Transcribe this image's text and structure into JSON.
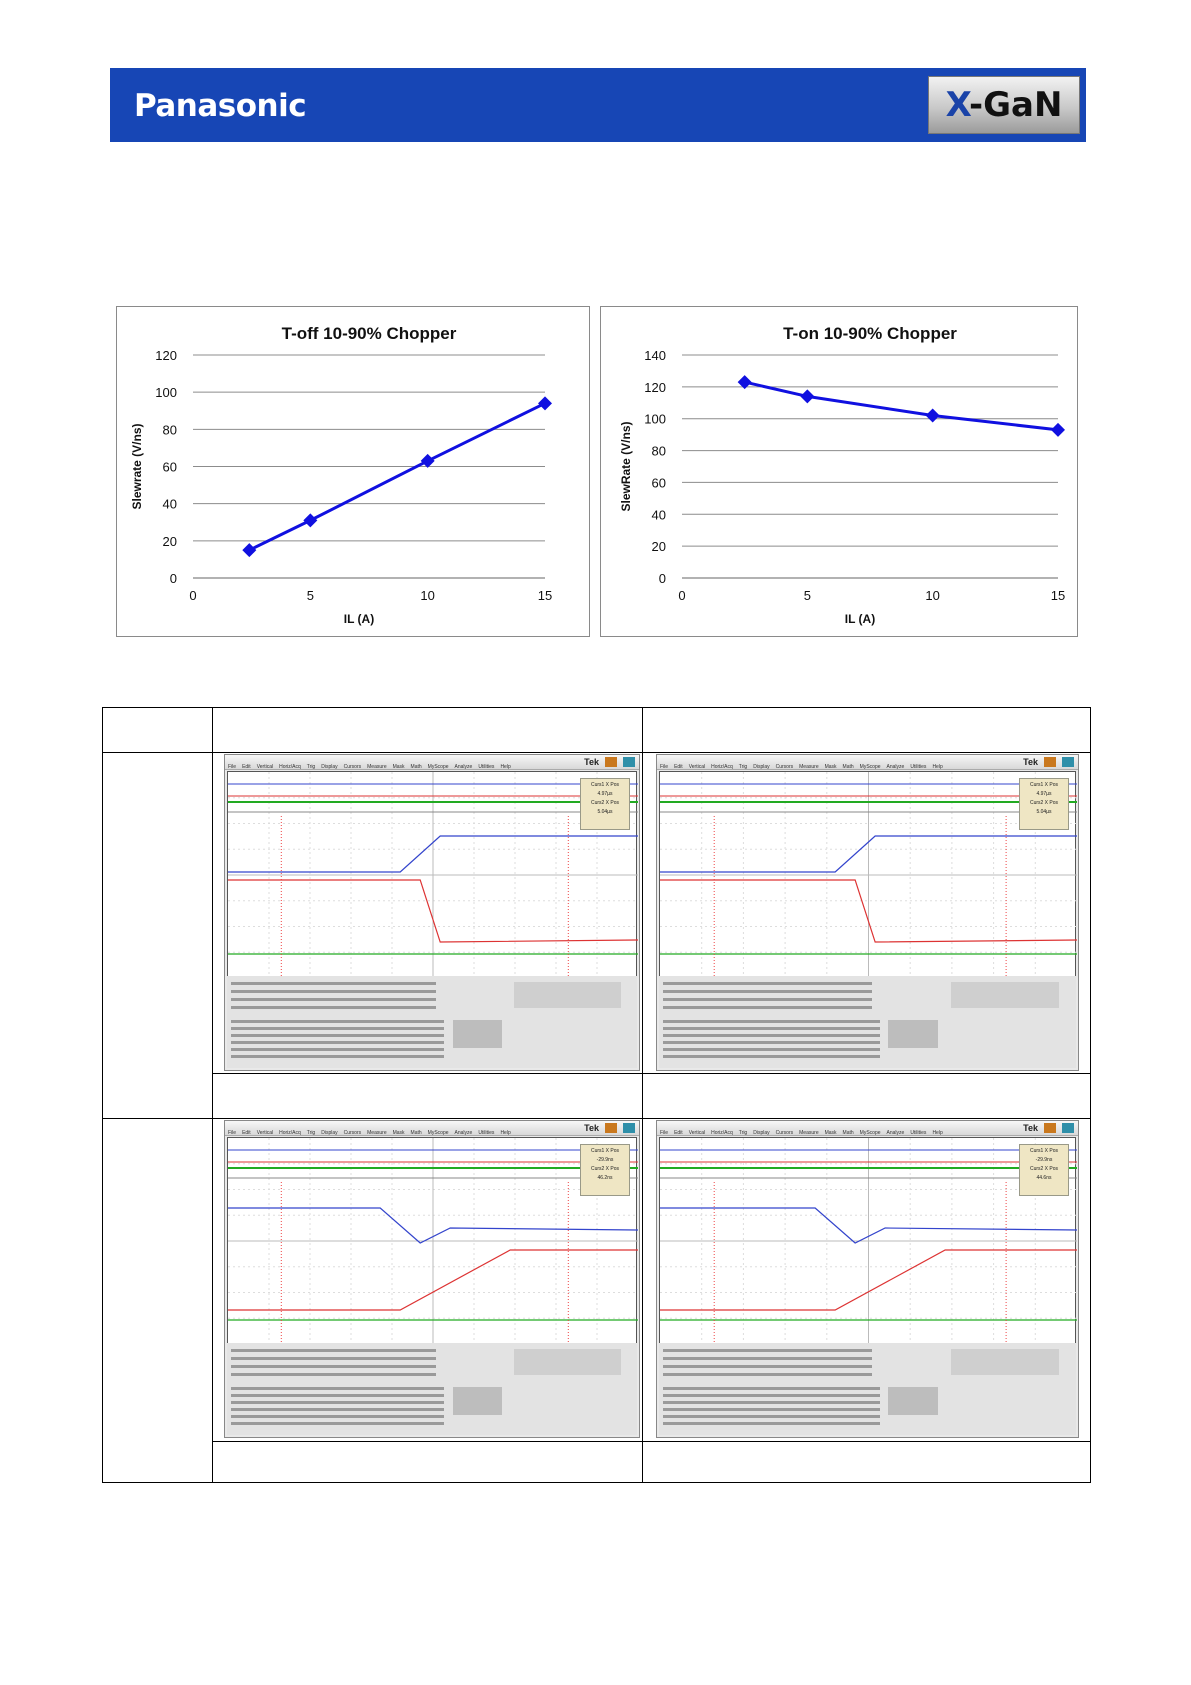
{
  "header": {
    "brand": "Panasonic",
    "logo_prefix": "X",
    "logo_suffix": "-GaN",
    "banner_color": "#1746b5"
  },
  "chart_data": [
    {
      "type": "line",
      "title": "T-off 10-90% Chopper",
      "xlabel": "IL (A)",
      "ylabel": "Slewrate (V/ns)",
      "xlim": [
        0,
        15
      ],
      "ylim": [
        0,
        120
      ],
      "xticks": [
        "0",
        "5",
        "10",
        "15"
      ],
      "yticks": [
        "0",
        "20",
        "40",
        "60",
        "80",
        "100",
        "120"
      ],
      "x": [
        2.4,
        5,
        10,
        15
      ],
      "y": [
        15,
        31,
        63,
        94
      ],
      "grid": true,
      "color": "#1010e0"
    },
    {
      "type": "line",
      "title": "T-on 10-90% Chopper",
      "xlabel": "IL (A)",
      "ylabel": "SlewRate (V/ns)",
      "xlim": [
        0,
        15
      ],
      "ylim": [
        0,
        140
      ],
      "xticks": [
        "0",
        "5",
        "10",
        "15"
      ],
      "yticks": [
        "0",
        "20",
        "40",
        "60",
        "80",
        "100",
        "120",
        "140"
      ],
      "x": [
        2.5,
        5,
        10,
        15
      ],
      "y": [
        123,
        114,
        102,
        93
      ],
      "grid": true,
      "color": "#1010e0"
    }
  ],
  "scopes": [
    {
      "cursor1_label": "Curs1 X Pos",
      "cursor1_value": "4.97µs",
      "cursor2_label": "Curs2 X Pos",
      "cursor2_value": "5.04µs",
      "tek": "Tek"
    },
    {
      "cursor1_label": "Curs1 X Pos",
      "cursor1_value": "4.97µs",
      "cursor2_label": "Curs2 X Pos",
      "cursor2_value": "5.04µs",
      "tek": "Tek"
    },
    {
      "cursor1_label": "Curs1 X Pos",
      "cursor1_value": "-29.9ns",
      "cursor2_label": "Curs2 X Pos",
      "cursor2_value": "46.2ns",
      "tek": "Tek"
    },
    {
      "cursor1_label": "Curs1 X Pos",
      "cursor1_value": "-29.9ns",
      "cursor2_label": "Curs2 X Pos",
      "cursor2_value": "44.6ns",
      "tek": "Tek"
    }
  ],
  "menu_items": [
    "File",
    "Edit",
    "Vertical",
    "Horiz/Acq",
    "Trig",
    "Display",
    "Cursors",
    "Measure",
    "Mask",
    "Math",
    "MyScope",
    "Analyze",
    "Utilities",
    "Help"
  ]
}
